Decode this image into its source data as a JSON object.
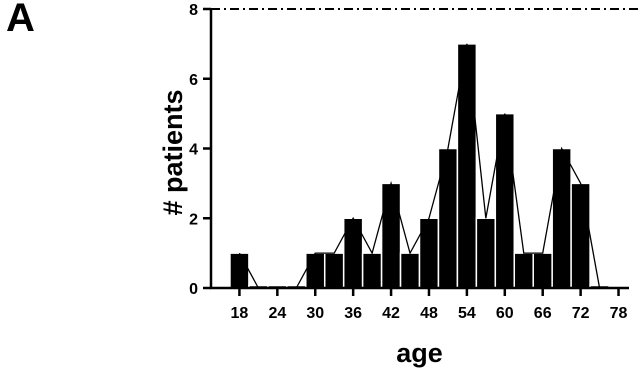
{
  "panel_label": "A",
  "chart_data": {
    "type": "bar",
    "xlabel": "age",
    "ylabel": "# patients",
    "ylim": [
      0,
      8
    ],
    "xlim": [
      13.5,
      79.5
    ],
    "x_ticks": [
      18,
      24,
      30,
      36,
      42,
      48,
      54,
      60,
      66,
      72,
      78
    ],
    "y_ticks": [
      0,
      2,
      4,
      6,
      8
    ],
    "reference_line": {
      "y": 8,
      "style": "dash-dot"
    },
    "bin_width": 3,
    "x": [
      18,
      21,
      24,
      27,
      30,
      33,
      36,
      39,
      42,
      45,
      48,
      51,
      54,
      57,
      60,
      63,
      66,
      69,
      72,
      75
    ],
    "values": [
      1,
      0,
      0,
      0,
      1,
      1,
      2,
      1,
      3,
      1,
      2,
      4,
      7,
      2,
      5,
      1,
      1,
      4,
      3,
      0
    ],
    "overlay": "frequency-polygon",
    "colors": {
      "bar": "#000000",
      "bar_edge": "#ffffff",
      "line": "#000000"
    }
  }
}
